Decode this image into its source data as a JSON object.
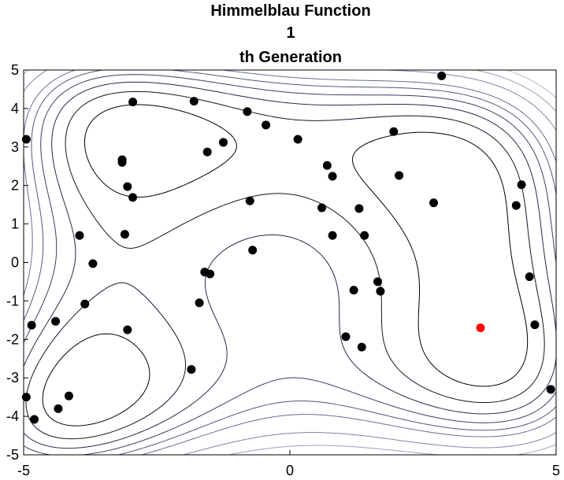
{
  "chart_data": {
    "type": "scatter",
    "title_lines": [
      "Himmelblau Function",
      "1",
      "th Generation"
    ],
    "xlabel": "",
    "ylabel": "",
    "xlim": [
      -5,
      5
    ],
    "ylim": [
      -5,
      5
    ],
    "x_ticks": [
      "-5",
      "0",
      "5"
    ],
    "y_ticks": [
      "5",
      "4",
      "3",
      "2",
      "1",
      "0",
      "-1",
      "-2",
      "-3",
      "-4",
      "-5"
    ],
    "grid": false,
    "legend": "none",
    "background_function": "himmelblau",
    "contour_levels": [
      50,
      100,
      150,
      200,
      250,
      300,
      400,
      500,
      600
    ],
    "contour_colors": [
      "#000000",
      "#14142a",
      "#262a44",
      "#3a4060",
      "#50587a",
      "#667090",
      "#7c88a4",
      "#98a2b8",
      "#b2bacb"
    ],
    "colors": {
      "population": "#000000",
      "best": "#ff0000",
      "axes": "#000000"
    },
    "series": [
      {
        "color": "#000000",
        "points": [
          [
            -4.95,
            3.2
          ],
          [
            -2.95,
            4.17
          ],
          [
            -1.8,
            4.19
          ],
          [
            -0.8,
            3.92
          ],
          [
            -0.45,
            3.57
          ],
          [
            0.15,
            3.2
          ],
          [
            2.85,
            4.85
          ],
          [
            1.95,
            3.4
          ],
          [
            -1.25,
            3.12
          ],
          [
            -1.55,
            2.87
          ],
          [
            -3.15,
            2.67
          ],
          [
            -3.15,
            2.6
          ],
          [
            -3.05,
            1.97
          ],
          [
            -2.95,
            1.69
          ],
          [
            -0.75,
            1.6
          ],
          [
            0.7,
            2.52
          ],
          [
            0.8,
            2.24
          ],
          [
            2.05,
            2.26
          ],
          [
            2.7,
            1.55
          ],
          [
            4.35,
            2.02
          ],
          [
            4.25,
            1.48
          ],
          [
            0.6,
            1.42
          ],
          [
            1.3,
            1.4
          ],
          [
            -3.95,
            0.7
          ],
          [
            -3.1,
            0.73
          ],
          [
            0.8,
            0.7
          ],
          [
            1.4,
            0.7
          ],
          [
            -3.7,
            -0.03
          ],
          [
            -0.7,
            0.32
          ],
          [
            -1.6,
            -0.25
          ],
          [
            -1.5,
            -0.3
          ],
          [
            1.65,
            -0.5
          ],
          [
            1.7,
            -0.75
          ],
          [
            1.2,
            -0.72
          ],
          [
            -3.85,
            -1.08
          ],
          [
            -1.7,
            -1.05
          ],
          [
            4.5,
            -0.37
          ],
          [
            -4.85,
            -1.63
          ],
          [
            -4.4,
            -1.53
          ],
          [
            -3.05,
            -1.75
          ],
          [
            4.6,
            -1.62
          ],
          [
            1.05,
            -1.93
          ],
          [
            1.35,
            -2.2
          ],
          [
            -1.85,
            -2.78
          ],
          [
            -4.95,
            -3.5
          ],
          [
            -4.15,
            -3.47
          ],
          [
            -4.35,
            -3.8
          ],
          [
            -4.8,
            -4.08
          ],
          [
            4.9,
            -3.3
          ]
        ]
      },
      {
        "color": "#ff0000",
        "points": [
          [
            3.58,
            -1.7
          ]
        ]
      }
    ]
  }
}
